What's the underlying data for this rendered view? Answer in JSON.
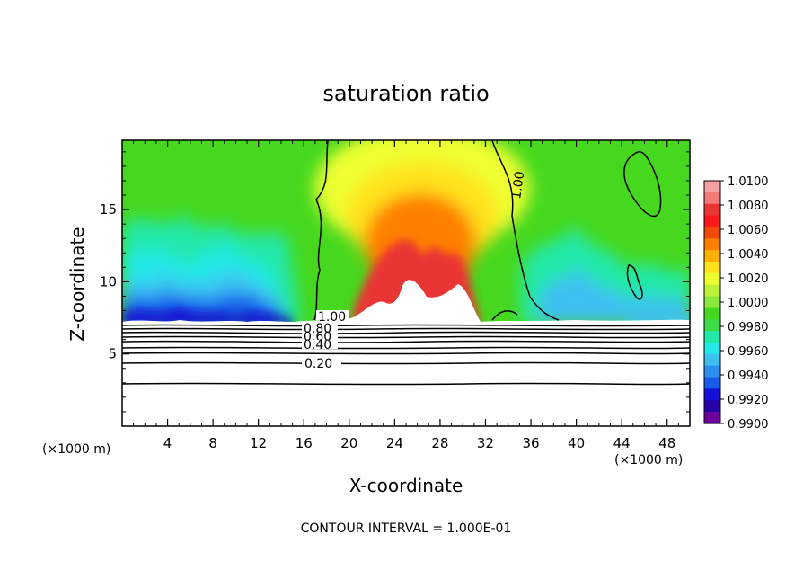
{
  "chart_data": {
    "type": "heatmap",
    "title": "saturation ratio",
    "xlabel": "X-coordinate",
    "ylabel": "Z-coordinate",
    "x_unit": "(×1000 m)",
    "xlim": [
      0,
      50
    ],
    "ylim": [
      0,
      19.8
    ],
    "x_ticks": [
      4,
      8,
      12,
      16,
      20,
      24,
      28,
      32,
      36,
      40,
      44,
      48
    ],
    "y_ticks": [
      5,
      10,
      15
    ],
    "colorbar": {
      "levels": [
        "1.0100",
        "1.0080",
        "1.0060",
        "1.0040",
        "1.0020",
        "1.0000",
        "0.9980",
        "0.9960",
        "0.9940",
        "0.9920",
        "0.9900"
      ],
      "colors": [
        "#f4a0a0",
        "#f2787a",
        "#ea3434",
        "#ff1a1a",
        "#f04a08",
        "#ff7f00",
        "#ffb000",
        "#ffe21c",
        "#eeff30",
        "#bdf23a",
        "#8be83a",
        "#46d81e",
        "#3fdc4a",
        "#22e8a8",
        "#22e8e8",
        "#3cc0f2",
        "#2a8ef0",
        "#1858ea",
        "#1410d8",
        "#2800a8",
        "#6e00a0"
      ]
    },
    "contour_labels": [
      "1.00",
      "1.00",
      "0.80",
      "0.60",
      "0.40",
      "0.20"
    ],
    "annotation": "CONTOUR INTERVAL = 1.000E-01"
  }
}
